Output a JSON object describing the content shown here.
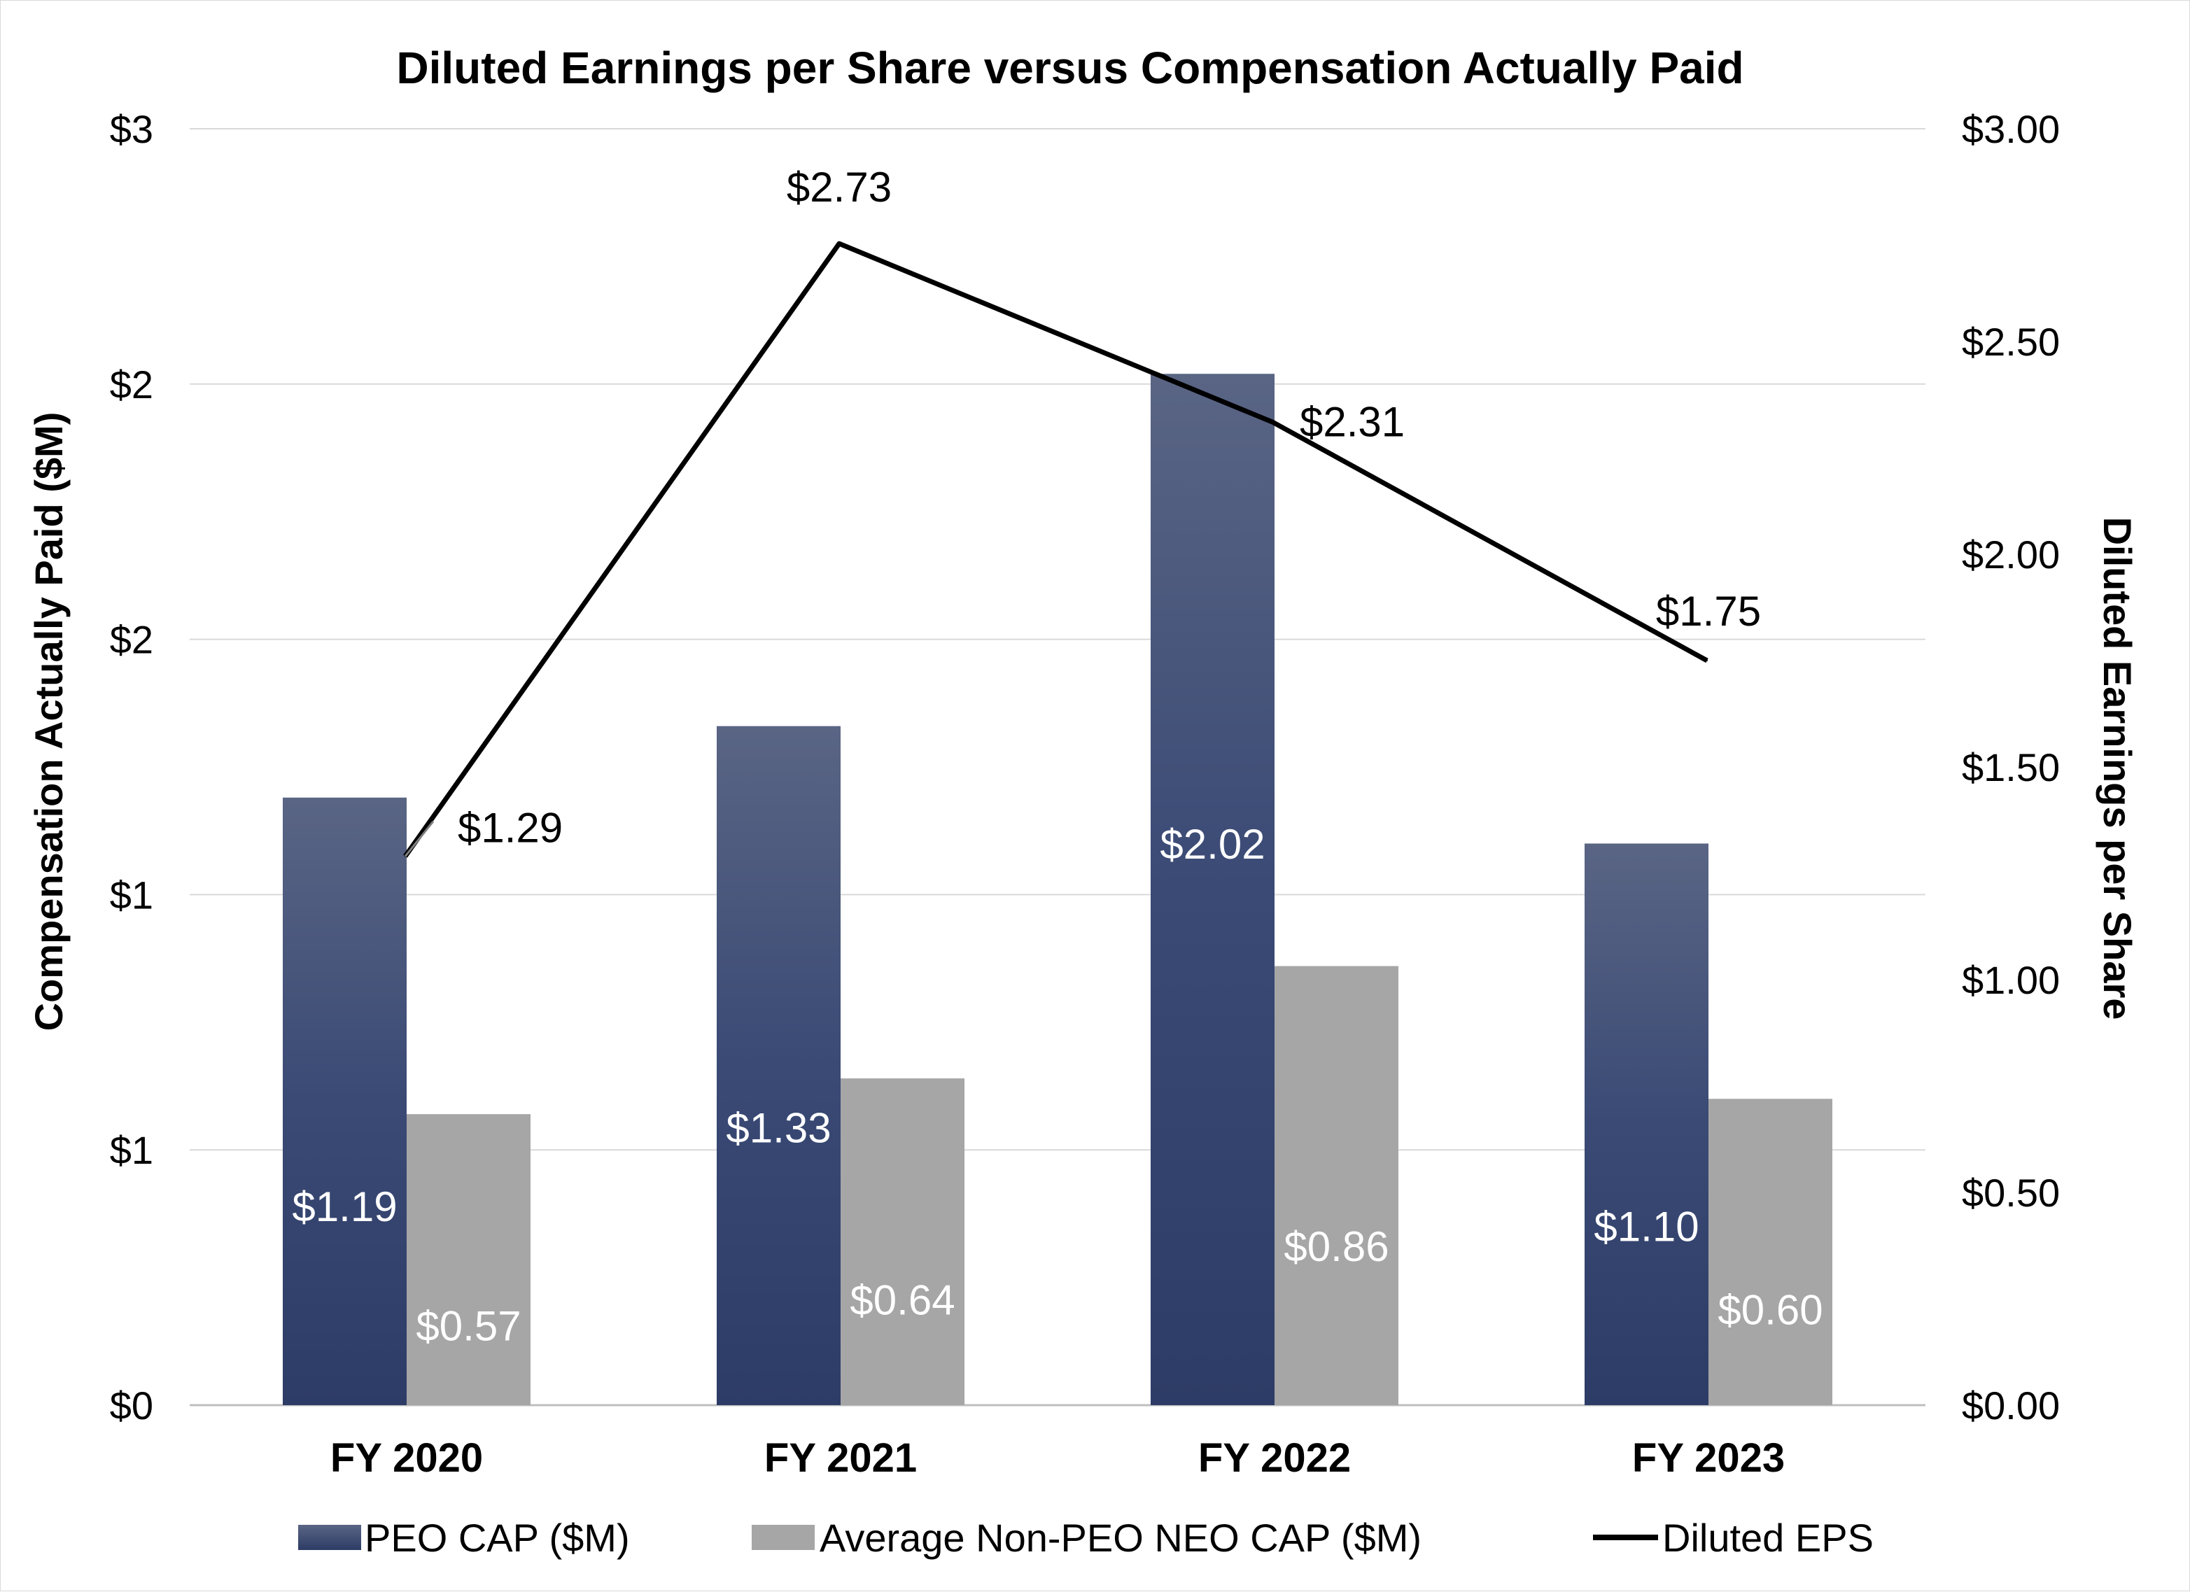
{
  "chart_data": {
    "type": "bar",
    "title": "Diluted Earnings per Share versus Compensation Actually Paid",
    "categories": [
      "FY 2020",
      "FY 2021",
      "FY 2022",
      "FY 2023"
    ],
    "series": [
      {
        "name": "PEO CAP ($M)",
        "chart": "bar",
        "axis": "left",
        "color": "#3a4a75",
        "values": [
          1.19,
          1.33,
          2.02,
          1.1
        ],
        "labels": [
          "$1.19",
          "$1.33",
          "$2.02",
          "$1.10"
        ]
      },
      {
        "name": "Average Non-PEO NEO CAP ($M)",
        "chart": "bar",
        "axis": "left",
        "color": "#a6a6a6",
        "values": [
          0.57,
          0.64,
          0.86,
          0.6
        ],
        "labels": [
          "$0.57",
          "$0.64",
          "$0.86",
          "$0.60"
        ]
      },
      {
        "name": "Diluted EPS",
        "chart": "line",
        "axis": "right",
        "color": "#000000",
        "values": [
          1.29,
          2.73,
          2.31,
          1.75
        ],
        "labels": [
          "$1.29",
          "$2.73",
          "$2.31",
          "$1.75"
        ]
      }
    ],
    "ylabel": "Compensation Actually Paid ($M)",
    "y2label": "Diluted Earnings per Share",
    "ylim": [
      0,
      2.5
    ],
    "y2lim": [
      0,
      3
    ],
    "y_ticks": [
      0,
      0.5,
      1,
      1.5,
      2,
      2.5
    ],
    "y_tick_labels": [
      "$0",
      "$1",
      "$1",
      "$2",
      "$2",
      "$3"
    ],
    "y2_ticks": [
      0,
      0.5,
      1,
      1.5,
      2,
      2.5,
      3
    ],
    "y2_tick_labels": [
      "$0.00",
      "$0.50",
      "$1.00",
      "$1.50",
      "$2.00",
      "$2.50",
      "$3.00"
    ],
    "grid": true,
    "legend": "bottom"
  }
}
